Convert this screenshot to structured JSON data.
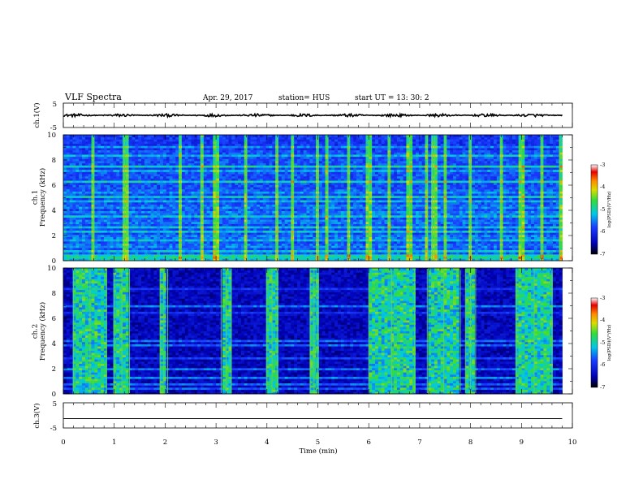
{
  "header": {
    "title": "VLF Spectra",
    "date": "Apr. 29, 2017",
    "station": "station= HUS",
    "start": "start  UT =   13: 30: 2"
  },
  "colors": {
    "spectrogram_background": "#000010",
    "signal_green": "#5ed35a",
    "signal_cyan": "#19c8e6",
    "signal_blue": "#1f42ff"
  },
  "chart_data": [
    {
      "type": "line",
      "name": "ch1-waveform",
      "ylabel": "ch.1(V)",
      "yticks": [
        "5",
        "-5"
      ],
      "ylim": [
        -5,
        5
      ],
      "xlim": [
        0,
        10
      ],
      "trace": {
        "mean": 0,
        "amplitude": 0.6,
        "x_end": 9.8
      }
    },
    {
      "type": "heatmap",
      "name": "ch1-spectrogram",
      "ylabel": "ch.1\nFrequency (kHz)",
      "yticks": [
        "0",
        "2",
        "4",
        "6",
        "8",
        "10"
      ],
      "ylim": [
        0,
        10
      ],
      "xlim": [
        0,
        10
      ],
      "x_end": 9.8,
      "colorbar": {
        "label": "log(PSD)(V²/Hz)",
        "ticks": [
          "-3",
          "-4",
          "-5",
          "-6",
          "-7"
        ],
        "range": [
          -7,
          -3
        ]
      },
      "bands_khz": [
        0.2,
        0.5,
        0.8,
        1.2,
        1.6,
        1.9,
        2.3,
        2.7,
        3.1,
        3.5,
        3.8,
        4.3,
        4.7,
        5.1,
        5.5,
        6.3,
        7.1,
        7.5,
        8.4,
        9.1
      ],
      "spike_times_min": [
        0.6,
        1.2,
        1.25,
        2.3,
        2.7,
        3.0,
        3.6,
        4.2,
        4.5,
        5.0,
        5.2,
        5.6,
        6.0,
        6.4,
        6.8,
        7.15,
        7.25,
        7.3,
        7.5,
        8.0,
        8.6,
        9.0,
        9.4,
        9.75
      ]
    },
    {
      "type": "heatmap",
      "name": "ch2-spectrogram",
      "ylabel": "ch.2\nFrequency (kHz)",
      "yticks": [
        "0",
        "2",
        "4",
        "6",
        "8",
        "10"
      ],
      "ylim": [
        0,
        10
      ],
      "xlim": [
        0,
        10
      ],
      "x_end": 9.8,
      "colorbar": {
        "label": "log(PSD)(V²/Hz)",
        "ticks": [
          "-3",
          "-4",
          "-5",
          "-6",
          "-7"
        ],
        "range": [
          -7,
          -3
        ]
      },
      "bands_khz": [
        0.4,
        0.8,
        1.3,
        2.0,
        2.8,
        3.9,
        4.2,
        6.4,
        7.0,
        8.3
      ],
      "active_intervals_min": [
        [
          0.2,
          0.85
        ],
        [
          1.0,
          1.3
        ],
        [
          1.9,
          2.05
        ],
        [
          3.1,
          3.3
        ],
        [
          4.0,
          4.2
        ],
        [
          4.85,
          5.0
        ],
        [
          6.0,
          6.9
        ],
        [
          7.15,
          7.8
        ],
        [
          7.9,
          8.1
        ],
        [
          8.9,
          9.6
        ]
      ]
    },
    {
      "type": "line",
      "name": "ch3-waveform",
      "ylabel": "ch.3(V)",
      "yticks": [
        "5",
        "-5"
      ],
      "ylim": [
        -5,
        5
      ],
      "xlim": [
        0,
        10
      ],
      "xlabel": "Time (min)",
      "xticks": [
        "0",
        "1",
        "2",
        "3",
        "4",
        "5",
        "6",
        "7",
        "8",
        "9",
        "10"
      ],
      "trace": {
        "constant": 0,
        "x_end": 9.8
      }
    }
  ]
}
